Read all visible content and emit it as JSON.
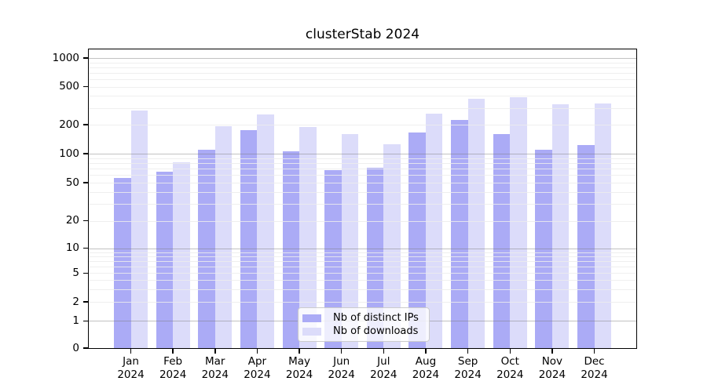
{
  "chart_data": {
    "type": "bar",
    "title": "clusterStab 2024",
    "categories": [
      "Jan 2024",
      "Feb 2024",
      "Mar 2024",
      "Apr 2024",
      "May 2024",
      "Jun 2024",
      "Jul 2024",
      "Aug 2024",
      "Sep 2024",
      "Oct 2024",
      "Nov 2024",
      "Dec 2024"
    ],
    "series": [
      {
        "name": "Nb of distinct IPs",
        "color": "#ababf6",
        "values": [
          56,
          65,
          110,
          175,
          105,
          68,
          72,
          165,
          225,
          161,
          109,
          123
        ]
      },
      {
        "name": "Nb of downloads",
        "color": "#dcdcfa",
        "values": [
          281,
          82,
          193,
          257,
          188,
          160,
          126,
          261,
          373,
          385,
          325,
          331
        ]
      }
    ],
    "yscale": "symlog",
    "y_ticks": [
      0,
      1,
      2,
      5,
      10,
      20,
      50,
      100,
      200,
      500,
      1000
    ],
    "ylim": [
      0,
      1400
    ],
    "xlabel": "",
    "ylabel": "",
    "grid": true,
    "legend_position": "inside-bottom-center"
  },
  "colors": {
    "grid_minor": "rgba(236,236,236,0.85)",
    "grid_major": "rgba(120,120,120,0.45)",
    "axis": "#000000",
    "legend_border": "#cccccc",
    "legend_bg": "rgba(255,255,255,0.8)"
  }
}
